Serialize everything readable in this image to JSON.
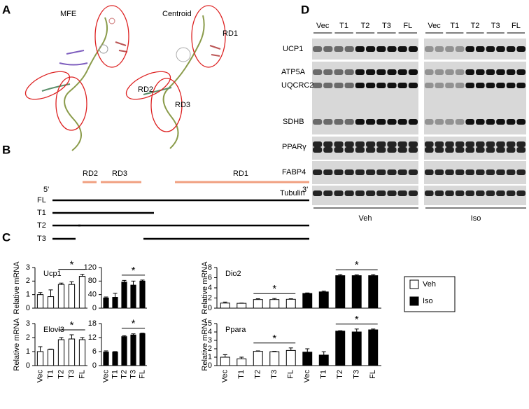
{
  "panel_labels": [
    "A",
    "B",
    "C",
    "D"
  ],
  "panel_a": {
    "structures": [
      "MFE",
      "Centroid"
    ],
    "regions": [
      "RD1",
      "RD2",
      "RD3"
    ]
  },
  "panel_b": {
    "regions": [
      "RD2",
      "RD3",
      "RD1"
    ],
    "ends": [
      "5'",
      "3'"
    ],
    "constructs": [
      "FL",
      "T1",
      "T2",
      "T3"
    ]
  },
  "panel_d": {
    "groups": [
      "Vec",
      "T1",
      "T2",
      "T3",
      "FL",
      "Vec",
      "T1",
      "T2",
      "T3",
      "FL"
    ],
    "proteins": [
      "UCP1",
      "ATP5A",
      "UQCRC2",
      "SDHB",
      "PPARγ",
      "FABP4",
      "Tubulin"
    ],
    "treatments": [
      "Veh",
      "Iso"
    ]
  },
  "legend": {
    "entries": [
      {
        "name": "Veh",
        "color": "#ffffff"
      },
      {
        "name": "Iso",
        "color": "#000000"
      }
    ]
  },
  "chart_data": [
    {
      "type": "bar",
      "title": "Ucp1",
      "y_label": "Relative mRNA",
      "categories": [
        null,
        null,
        null,
        null,
        null
      ],
      "values": [
        1.0,
        0.85,
        1.75,
        1.75,
        2.35
      ],
      "errors": [
        0.15,
        0.5,
        0.1,
        0.2,
        0.15
      ],
      "color": "#ffffff",
      "ylim": [
        0,
        3
      ],
      "yticks": [
        0,
        1,
        2,
        3
      ],
      "annotations": [
        "*"
      ]
    },
    {
      "type": "bar",
      "categories": [
        null,
        null,
        null,
        null,
        null
      ],
      "values": [
        30,
        32,
        77,
        68,
        80
      ],
      "errors": [
        3,
        12,
        5,
        12,
        3
      ],
      "color": "#000000",
      "ylim": [
        0,
        120
      ],
      "yticks": [
        0,
        40,
        80,
        120
      ],
      "annotations": [
        "*"
      ]
    },
    {
      "type": "bar",
      "title": "Dio2",
      "y_label": "Relative mRNA",
      "categories": [
        null,
        null,
        null,
        null,
        null,
        null,
        null,
        null,
        null,
        null
      ],
      "values": [
        1.0,
        0.95,
        1.7,
        1.7,
        1.75,
        2.9,
        3.2,
        6.4,
        6.4,
        6.4
      ],
      "errors": [
        0.2,
        0.05,
        0.15,
        0.2,
        0.1,
        0.1,
        0.15,
        0.2,
        0.15,
        0.2
      ],
      "colors": [
        "#ffffff",
        "#ffffff",
        "#ffffff",
        "#ffffff",
        "#ffffff",
        "#000000",
        "#000000",
        "#000000",
        "#000000",
        "#000000"
      ],
      "ylim": [
        0,
        8
      ],
      "yticks": [
        0,
        2,
        4,
        6,
        8
      ],
      "annotations": [
        "*",
        "*"
      ]
    },
    {
      "type": "bar",
      "title": "Elovl3",
      "y_label": "Relative mRNA",
      "categories": [
        "Vec",
        "T1",
        "T2",
        "T3",
        "FL"
      ],
      "values": [
        1.0,
        1.15,
        1.85,
        1.9,
        1.85
      ],
      "errors": [
        0.35,
        0.03,
        0.15,
        0.3,
        0.15
      ],
      "color": "#ffffff",
      "ylim": [
        0,
        3
      ],
      "yticks": [
        0,
        1,
        2,
        3
      ],
      "annotations": [
        "*"
      ]
    },
    {
      "type": "bar",
      "categories": [
        "Vec",
        "T1",
        "T2",
        "T3",
        "FL"
      ],
      "values": [
        5.8,
        5.8,
        12.4,
        13.1,
        13.7
      ],
      "errors": [
        0.5,
        0.2,
        0.4,
        0.5,
        0.2
      ],
      "color": "#000000",
      "ylim": [
        0,
        18
      ],
      "yticks": [
        0,
        6,
        12,
        18
      ],
      "annotations": [
        "*"
      ]
    },
    {
      "type": "bar",
      "title": "Ppara",
      "y_label": "Relative mRNA",
      "categories": [
        "Vec",
        "T1",
        "T2",
        "T3",
        "FL",
        "Vec",
        "T1",
        "T2",
        "T3",
        "FL"
      ],
      "values": [
        1.0,
        0.8,
        1.7,
        1.65,
        1.8,
        1.6,
        1.25,
        4.1,
        4.0,
        4.25
      ],
      "errors": [
        0.3,
        0.2,
        0.05,
        0.05,
        0.3,
        0.4,
        0.4,
        0.05,
        0.35,
        0.1
      ],
      "colors": [
        "#ffffff",
        "#ffffff",
        "#ffffff",
        "#ffffff",
        "#ffffff",
        "#000000",
        "#000000",
        "#000000",
        "#000000",
        "#000000"
      ],
      "ylim": [
        0,
        5
      ],
      "yticks": [
        0,
        1,
        2,
        3,
        4,
        5
      ],
      "annotations": [
        "*",
        "*"
      ]
    }
  ]
}
